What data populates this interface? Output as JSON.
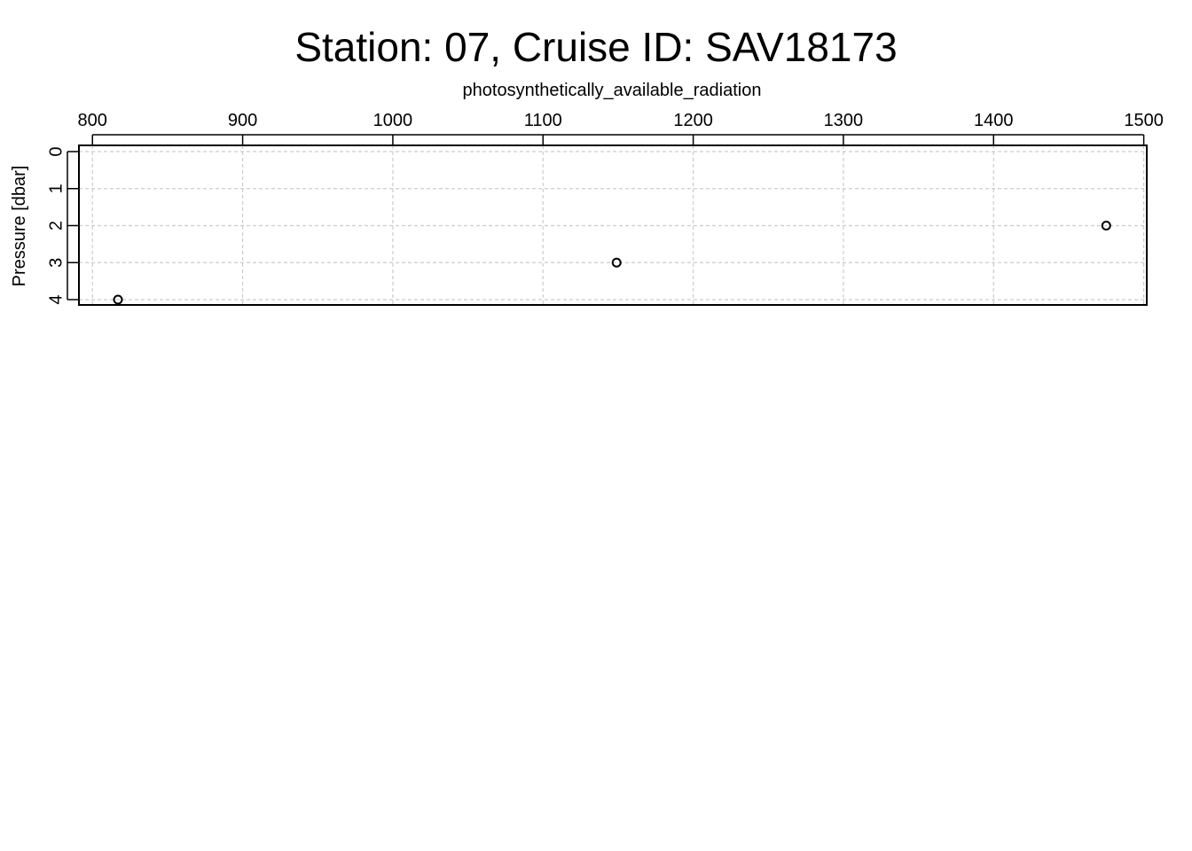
{
  "chart_data": {
    "type": "scatter",
    "title": "Station: 07, Cruise ID: SAV18173",
    "xlabel": "photosynthetically_available_radiation",
    "ylabel": "Pressure [dbar]",
    "x_axis_position": "top",
    "y_axis_reversed": true,
    "xlim": [
      791,
      1502
    ],
    "ylim": [
      0,
      4
    ],
    "x_ticks": [
      800,
      900,
      1000,
      1100,
      1200,
      1300,
      1400,
      1500
    ],
    "y_ticks": [
      0,
      1,
      2,
      3,
      4
    ],
    "grid": true,
    "marker": "open-circle",
    "points": [
      {
        "x": 1475,
        "y": 2
      },
      {
        "x": 1149,
        "y": 3
      },
      {
        "x": 817,
        "y": 4
      }
    ],
    "colors": {
      "points": "#000000",
      "grid": "#cccccc",
      "frame": "#000000"
    }
  }
}
